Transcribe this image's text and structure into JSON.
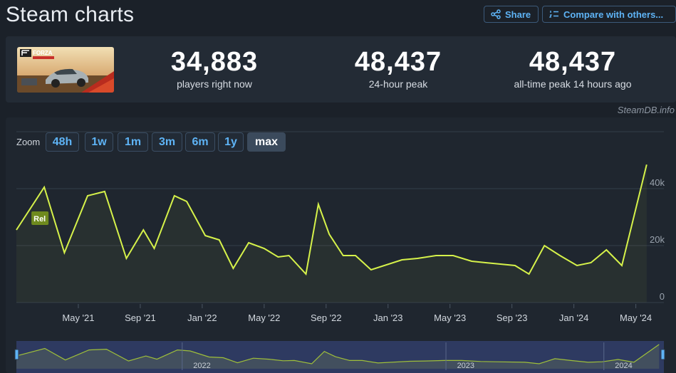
{
  "header": {
    "title": "Steam charts",
    "share_label": "Share",
    "compare_label": "Compare with others..."
  },
  "stats": [
    {
      "value": "34,883",
      "label": "players right now"
    },
    {
      "value": "48,437",
      "label": "24-hour peak"
    },
    {
      "value": "48,437",
      "label": "all-time peak 14 hours ago"
    }
  ],
  "game_thumb": {
    "logo_text": "FORZA"
  },
  "attribution": "SteamDB.info",
  "zoom": {
    "label": "Zoom",
    "options": [
      "48h",
      "1w",
      "1m",
      "3m",
      "6m",
      "1y",
      "max"
    ],
    "selected": "max"
  },
  "colors": {
    "line": "#d6f24a",
    "accent": "#5eb3f5",
    "navigator_fill": "#3b4a8a"
  },
  "chart_data": {
    "type": "line",
    "ylim": [
      0,
      50000
    ],
    "y_ticks": [
      "0",
      "20k",
      "40k"
    ],
    "y_tick_values": [
      0,
      20000,
      40000
    ],
    "x_ticks": [
      "May '21",
      "Sep '21",
      "Jan '22",
      "May '22",
      "Sep '22",
      "Jan '23",
      "May '23",
      "Sep '23",
      "Jan '24",
      "May '24"
    ],
    "x_tick_months": [
      4,
      8,
      12,
      16,
      20,
      24,
      28,
      32,
      36,
      40
    ],
    "annotation": "Rel",
    "annotation_month": 1.8,
    "series": [
      {
        "months": [
          0,
          1.8,
          3.1,
          4.6,
          5.7,
          7.1,
          8.2,
          8.9,
          10.2,
          11.0,
          12.2,
          13.1,
          14.0,
          15.0,
          16.0,
          16.9,
          17.6,
          18.7,
          19.5,
          20.2,
          21.1,
          21.9,
          22.9,
          24.9,
          25.9,
          27.1,
          28.2,
          29.4,
          30.3,
          32.2,
          33.1,
          34.1,
          35.1,
          36.2,
          37.1,
          38.1,
          39.1,
          40.7
        ],
        "values": [
          25500,
          40500,
          17500,
          37500,
          39000,
          15500,
          25500,
          19000,
          37500,
          35500,
          23500,
          22000,
          12000,
          21000,
          19000,
          16000,
          16500,
          10000,
          34500,
          24000,
          16500,
          16500,
          11500,
          15000,
          15500,
          16500,
          16500,
          14500,
          14000,
          13000,
          10000,
          20000,
          16500,
          13000,
          14000,
          18500,
          13000,
          48437
        ]
      }
    ]
  }
}
